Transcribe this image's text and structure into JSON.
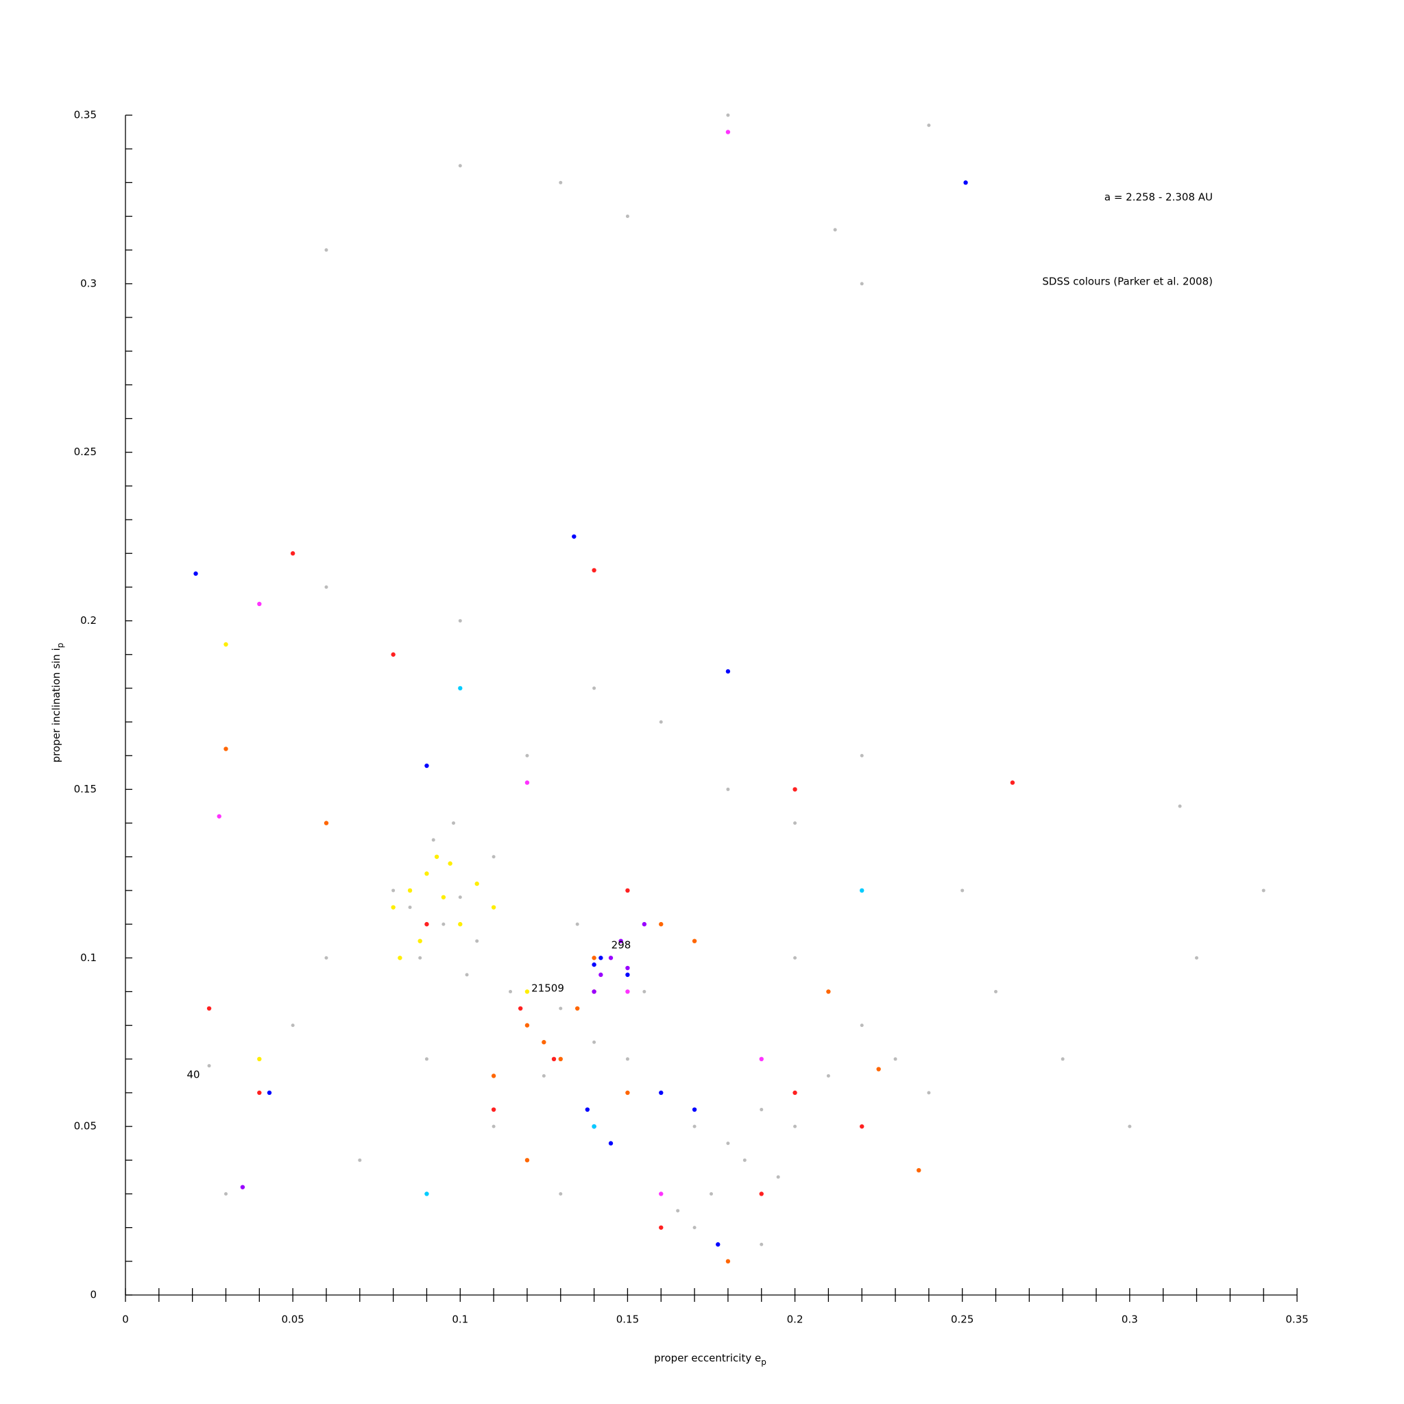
{
  "chart_data": {
    "type": "scatter",
    "annotations": [
      "a = 2.258 - 2.308 AU",
      "SDSS colours (Parker et al. 2008)",
      "40",
      "298",
      "21509"
    ],
    "xlabel": [
      "proper eccentricity e",
      "p"
    ],
    "ylabel": [
      "proper inclination sin i",
      "p"
    ],
    "xlim": [
      0,
      0.35
    ],
    "ylim": [
      0,
      0.35
    ],
    "xticks": [
      0,
      0.05,
      0.1,
      0.15,
      0.2,
      0.25,
      0.3,
      0.35
    ],
    "yticks": [
      0,
      0.05,
      0.1,
      0.15,
      0.2,
      0.25,
      0.3,
      0.35
    ],
    "xminorticks": [
      0.01,
      0.02,
      0.03,
      0.04,
      0.06,
      0.07,
      0.08,
      0.09,
      0.11,
      0.12,
      0.13,
      0.14,
      0.16,
      0.17,
      0.18,
      0.19,
      0.21,
      0.22,
      0.23,
      0.24,
      0.26,
      0.27,
      0.28,
      0.29,
      0.31,
      0.32,
      0.33,
      0.34
    ],
    "yminorticks": [
      0.01,
      0.02,
      0.03,
      0.04,
      0.06,
      0.07,
      0.08,
      0.09,
      0.11,
      0.12,
      0.13,
      0.14,
      0.16,
      0.17,
      0.18,
      0.19,
      0.21,
      0.22,
      0.23,
      0.24,
      0.26,
      0.27,
      0.28,
      0.29,
      0.31,
      0.32,
      0.33,
      0.34
    ],
    "series": [
      {
        "color": "#bbbbbb",
        "x": [
          0.08,
          0.085,
          0.09,
          0.095,
          0.1,
          0.105,
          0.11,
          0.088,
          0.092,
          0.098,
          0.102,
          0.115,
          0.12,
          0.13,
          0.14,
          0.15,
          0.16,
          0.17,
          0.18,
          0.185,
          0.19,
          0.195,
          0.2,
          0.21,
          0.175,
          0.165,
          0.155,
          0.145,
          0.135,
          0.125,
          0.2,
          0.21,
          0.22,
          0.23,
          0.24,
          0.06,
          0.05,
          0.04,
          0.07,
          0.03,
          0.25,
          0.26,
          0.28,
          0.3,
          0.32,
          0.34,
          0.12,
          0.14,
          0.16,
          0.18,
          0.2,
          0.22,
          0.1,
          0.08,
          0.06,
          0.17,
          0.19,
          0.13,
          0.11,
          0.09,
          0.212,
          0.18,
          0.15,
          0.22,
          0.06,
          0.1,
          0.13,
          0.24,
          0.025,
          0.315
        ],
        "y": [
          0.12,
          0.115,
          0.125,
          0.11,
          0.118,
          0.105,
          0.13,
          0.1,
          0.135,
          0.14,
          0.095,
          0.09,
          0.08,
          0.085,
          0.075,
          0.07,
          0.06,
          0.05,
          0.045,
          0.04,
          0.055,
          0.035,
          0.05,
          0.065,
          0.03,
          0.025,
          0.09,
          0.1,
          0.11,
          0.065,
          0.1,
          0.09,
          0.08,
          0.07,
          0.06,
          0.1,
          0.08,
          0.06,
          0.04,
          0.03,
          0.12,
          0.09,
          0.07,
          0.05,
          0.1,
          0.12,
          0.16,
          0.18,
          0.17,
          0.15,
          0.14,
          0.16,
          0.2,
          0.19,
          0.21,
          0.02,
          0.015,
          0.03,
          0.05,
          0.07,
          0.316,
          0.35,
          0.32,
          0.3,
          0.31,
          0.335,
          0.33,
          0.347,
          0.068,
          0.145
        ]
      },
      {
        "color": "#ffee00",
        "x": [
          0.08,
          0.085,
          0.09,
          0.095,
          0.1,
          0.105,
          0.088,
          0.093,
          0.11,
          0.082,
          0.097,
          0.12,
          0.03,
          0.04
        ],
        "y": [
          0.115,
          0.12,
          0.125,
          0.118,
          0.11,
          0.122,
          0.105,
          0.13,
          0.115,
          0.1,
          0.128,
          0.09,
          0.193,
          0.07
        ]
      },
      {
        "color": "#ff6600",
        "x": [
          0.12,
          0.125,
          0.13,
          0.135,
          0.11,
          0.14,
          0.16,
          0.17,
          0.21,
          0.225,
          0.06,
          0.15,
          0.12,
          0.03,
          0.237,
          0.18
        ],
        "y": [
          0.08,
          0.075,
          0.07,
          0.085,
          0.065,
          0.1,
          0.11,
          0.105,
          0.09,
          0.067,
          0.14,
          0.06,
          0.04,
          0.162,
          0.037,
          0.01
        ]
      },
      {
        "color": "#ff2020",
        "x": [
          0.118,
          0.128,
          0.14,
          0.15,
          0.09,
          0.11,
          0.16,
          0.19,
          0.2,
          0.05,
          0.04,
          0.025,
          0.08,
          0.2,
          0.265,
          0.14,
          0.22
        ],
        "y": [
          0.085,
          0.07,
          0.09,
          0.12,
          0.11,
          0.055,
          0.02,
          0.03,
          0.15,
          0.22,
          0.06,
          0.085,
          0.19,
          0.06,
          0.152,
          0.215,
          0.05
        ]
      },
      {
        "color": "#0000ff",
        "x": [
          0.14,
          0.138,
          0.145,
          0.142,
          0.15,
          0.16,
          0.17,
          0.18,
          0.09,
          0.021,
          0.251,
          0.134,
          0.177,
          0.043,
          0.14
        ],
        "y": [
          0.05,
          0.055,
          0.045,
          0.1,
          0.095,
          0.06,
          0.055,
          0.185,
          0.157,
          0.214,
          0.33,
          0.225,
          0.015,
          0.06,
          0.098
        ]
      },
      {
        "color": "#9900ff",
        "x": [
          0.142,
          0.145,
          0.148,
          0.15,
          0.155,
          0.14,
          0.035
        ],
        "y": [
          0.095,
          0.1,
          0.105,
          0.097,
          0.11,
          0.09,
          0.032
        ]
      },
      {
        "color": "#ff33ff",
        "x": [
          0.18,
          0.15,
          0.04,
          0.028,
          0.12,
          0.19,
          0.16
        ],
        "y": [
          0.345,
          0.09,
          0.205,
          0.142,
          0.152,
          0.07,
          0.03
        ]
      },
      {
        "color": "#00ccff",
        "x": [
          0.1,
          0.14,
          0.22,
          0.09
        ],
        "y": [
          0.18,
          0.05,
          0.12,
          0.03
        ]
      }
    ]
  }
}
